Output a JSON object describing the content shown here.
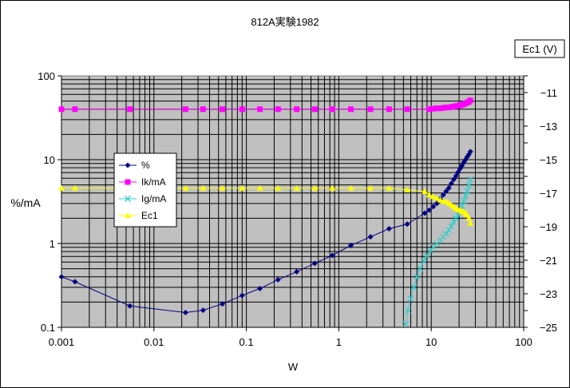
{
  "chart_data": {
    "type": "scatter",
    "title": "812A実験1982",
    "xlabel": "W",
    "ylabel": "%/mA",
    "y2label": "Ec1 (V)",
    "x_scale": "log",
    "y_scale": "log",
    "xlim": [
      0.001,
      100
    ],
    "ylim": [
      0.1,
      100
    ],
    "y2lim": [
      -25,
      -10
    ],
    "x_ticks": [
      "0.001",
      "0.01",
      "0.1",
      "1",
      "10",
      "100"
    ],
    "y_ticks": [
      "0.1",
      "1",
      "10",
      "100"
    ],
    "y2_ticks": [
      "-11",
      "-13",
      "-15",
      "-17",
      "-19",
      "-21",
      "-23",
      "-25"
    ],
    "grid": true,
    "legend_position": "left-middle",
    "colors": {
      "plot_background": "#c0c0c0",
      "percent": "#000080",
      "ik": "#ff00ff",
      "ig": "#33cccc",
      "ec1": "#ffff00"
    },
    "series": [
      {
        "name": "%",
        "axis": "left",
        "marker": "diamond",
        "color": "#000080",
        "x": [
          0.001,
          0.0014,
          0.0055,
          0.022,
          0.034,
          0.055,
          0.09,
          0.14,
          0.22,
          0.35,
          0.55,
          0.85,
          1.35,
          2.2,
          3.5,
          5.5,
          8.5,
          9.5,
          10.5,
          11.5,
          12.5,
          13.5,
          14.5,
          15.5,
          16.5,
          17.5,
          18.5,
          19.5,
          20.5,
          21.5,
          22.5,
          23.5,
          24.5,
          25.5,
          26.5
        ],
        "y": [
          0.4,
          0.35,
          0.18,
          0.15,
          0.16,
          0.19,
          0.24,
          0.29,
          0.37,
          0.46,
          0.58,
          0.72,
          0.95,
          1.2,
          1.5,
          1.7,
          2.3,
          2.5,
          2.75,
          3.0,
          3.4,
          3.8,
          4.2,
          4.6,
          5.2,
          5.8,
          6.4,
          7.1,
          7.8,
          8.5,
          9.3,
          10.0,
          10.8,
          11.5,
          12.5
        ]
      },
      {
        "name": "Ik/mA",
        "axis": "left",
        "marker": "square",
        "color": "#ff00ff",
        "x": [
          0.001,
          0.0014,
          0.0055,
          0.022,
          0.034,
          0.055,
          0.09,
          0.14,
          0.22,
          0.35,
          0.55,
          0.85,
          1.35,
          2.2,
          3.5,
          5.5,
          9.5,
          10.5,
          11.5,
          12.5,
          13.5,
          14.5,
          15.5,
          16.5,
          17.5,
          18.5,
          19.5,
          20.5,
          21.5,
          22.5,
          23.5,
          24.5,
          25.5,
          26.5
        ],
        "y": [
          40,
          40,
          40,
          40,
          40,
          40,
          40,
          40,
          40,
          40,
          40,
          40,
          40,
          40,
          40,
          40,
          40,
          40.5,
          41,
          41,
          41.5,
          42,
          42,
          42.5,
          43,
          43.5,
          44,
          44.5,
          45,
          46,
          47,
          48,
          49,
          51
        ]
      },
      {
        "name": "Ig/mA",
        "axis": "left",
        "marker": "x",
        "color": "#33cccc",
        "x": [
          5.3,
          5.6,
          6.0,
          6.5,
          7.0,
          7.6,
          8.3,
          9.0,
          9.8,
          10.6,
          11.5,
          12.5,
          13.5,
          14.5,
          15.5,
          16.5,
          17.5,
          18.5,
          19.5,
          20.5,
          21.5,
          22.5,
          23.5,
          24.5,
          25.5,
          26.5
        ],
        "y": [
          0.11,
          0.16,
          0.22,
          0.3,
          0.4,
          0.5,
          0.62,
          0.72,
          0.82,
          0.92,
          1.0,
          1.1,
          1.2,
          1.3,
          1.45,
          1.6,
          1.8,
          2.0,
          2.2,
          2.5,
          2.8,
          3.2,
          3.7,
          4.2,
          4.9,
          5.8
        ]
      },
      {
        "name": "Ec1",
        "axis": "right",
        "marker": "triangle",
        "color": "#ffff00",
        "x": [
          0.001,
          0.0014,
          0.0055,
          0.022,
          0.034,
          0.055,
          0.09,
          0.14,
          0.22,
          0.35,
          0.55,
          0.85,
          1.35,
          2.2,
          3.5,
          5.5,
          8.5,
          9.5,
          10.5,
          11.5,
          12.5,
          13.5,
          14.5,
          15.5,
          16.5,
          17.5,
          18.5,
          19.5,
          20.5,
          21.5,
          22.5,
          23.5,
          24.5,
          25.5,
          26.5
        ],
        "y": [
          -16.7,
          -16.7,
          -16.7,
          -16.7,
          -16.7,
          -16.7,
          -16.7,
          -16.7,
          -16.7,
          -16.7,
          -16.7,
          -16.7,
          -16.7,
          -16.7,
          -16.7,
          -16.8,
          -16.9,
          -17.1,
          -17.2,
          -17.3,
          -17.4,
          -17.5,
          -17.5,
          -17.6,
          -17.7,
          -17.8,
          -17.9,
          -18.0,
          -18.0,
          -18.1,
          -18.1,
          -18.2,
          -18.3,
          -18.5,
          -18.8
        ]
      }
    ]
  }
}
